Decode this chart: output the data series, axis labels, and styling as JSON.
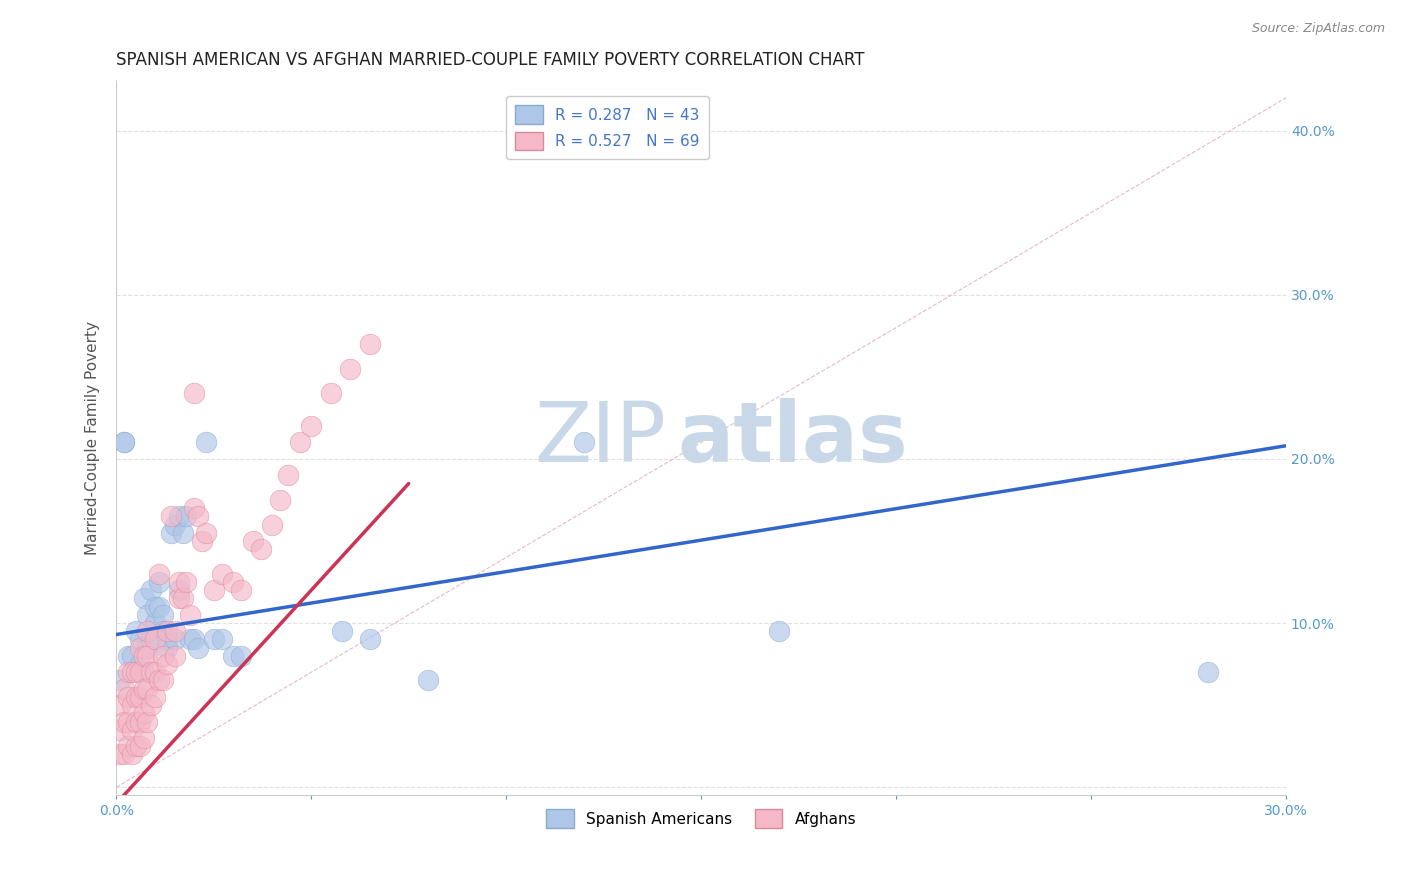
{
  "title": "SPANISH AMERICAN VS AFGHAN MARRIED-COUPLE FAMILY POVERTY CORRELATION CHART",
  "source": "Source: ZipAtlas.com",
  "ylabel": "Married-Couple Family Poverty",
  "xlim": [
    0.0,
    0.3
  ],
  "ylim": [
    -0.005,
    0.43
  ],
  "xticks": [
    0.0,
    0.05,
    0.1,
    0.15,
    0.2,
    0.25,
    0.3
  ],
  "xtick_labels": [
    "0.0%",
    "",
    "",
    "",
    "",
    "",
    "30.0%"
  ],
  "yticks": [
    0.0,
    0.1,
    0.2,
    0.3,
    0.4
  ],
  "ytick_labels": [
    "",
    "10.0%",
    "20.0%",
    "30.0%",
    "40.0%"
  ],
  "watermark_zip": "ZIP",
  "watermark_atlas": "atlas",
  "legend_entries": [
    {
      "label": "R = 0.287   N = 43",
      "color": "#aec6e8"
    },
    {
      "label": "R = 0.527   N = 69",
      "color": "#f4b8c8"
    }
  ],
  "legend_r_colors": [
    "#4477cc",
    "#4477cc"
  ],
  "spanish_americans": {
    "color": "#aec6e8",
    "edge_color": "#88aacc",
    "x": [
      0.001,
      0.002,
      0.003,
      0.004,
      0.005,
      0.006,
      0.006,
      0.007,
      0.007,
      0.008,
      0.008,
      0.009,
      0.009,
      0.01,
      0.01,
      0.011,
      0.011,
      0.012,
      0.012,
      0.013,
      0.013,
      0.014,
      0.015,
      0.015,
      0.016,
      0.016,
      0.017,
      0.018,
      0.019,
      0.02,
      0.021,
      0.023,
      0.025,
      0.027,
      0.03,
      0.032,
      0.058,
      0.065,
      0.08,
      0.12,
      0.17,
      0.28,
      0.002
    ],
    "y": [
      0.065,
      0.21,
      0.08,
      0.08,
      0.095,
      0.075,
      0.09,
      0.07,
      0.115,
      0.085,
      0.105,
      0.09,
      0.12,
      0.1,
      0.11,
      0.125,
      0.11,
      0.105,
      0.095,
      0.085,
      0.09,
      0.155,
      0.09,
      0.16,
      0.165,
      0.12,
      0.155,
      0.165,
      0.09,
      0.09,
      0.085,
      0.21,
      0.09,
      0.09,
      0.08,
      0.08,
      0.095,
      0.09,
      0.065,
      0.21,
      0.095,
      0.07,
      0.21
    ]
  },
  "afghans": {
    "color": "#f4b8c8",
    "edge_color": "#dd8899",
    "x": [
      0.001,
      0.001,
      0.001,
      0.002,
      0.002,
      0.002,
      0.003,
      0.003,
      0.003,
      0.003,
      0.004,
      0.004,
      0.004,
      0.004,
      0.005,
      0.005,
      0.005,
      0.005,
      0.006,
      0.006,
      0.006,
      0.006,
      0.006,
      0.007,
      0.007,
      0.007,
      0.007,
      0.008,
      0.008,
      0.008,
      0.008,
      0.009,
      0.009,
      0.01,
      0.01,
      0.01,
      0.011,
      0.011,
      0.012,
      0.012,
      0.013,
      0.013,
      0.014,
      0.015,
      0.015,
      0.016,
      0.016,
      0.017,
      0.018,
      0.019,
      0.02,
      0.021,
      0.022,
      0.023,
      0.025,
      0.027,
      0.03,
      0.032,
      0.035,
      0.037,
      0.04,
      0.042,
      0.044,
      0.047,
      0.05,
      0.055,
      0.06,
      0.065,
      0.02
    ],
    "y": [
      0.02,
      0.035,
      0.05,
      0.02,
      0.04,
      0.06,
      0.025,
      0.04,
      0.055,
      0.07,
      0.02,
      0.035,
      0.05,
      0.07,
      0.025,
      0.04,
      0.055,
      0.07,
      0.025,
      0.04,
      0.055,
      0.07,
      0.085,
      0.03,
      0.045,
      0.06,
      0.08,
      0.04,
      0.06,
      0.08,
      0.095,
      0.05,
      0.07,
      0.055,
      0.07,
      0.09,
      0.065,
      0.13,
      0.065,
      0.08,
      0.075,
      0.095,
      0.165,
      0.08,
      0.095,
      0.115,
      0.125,
      0.115,
      0.125,
      0.105,
      0.17,
      0.165,
      0.15,
      0.155,
      0.12,
      0.13,
      0.125,
      0.12,
      0.15,
      0.145,
      0.16,
      0.175,
      0.19,
      0.21,
      0.22,
      0.24,
      0.255,
      0.27,
      0.24
    ]
  },
  "diagonal_line": {
    "x": [
      0.0,
      0.3
    ],
    "y": [
      0.0,
      0.42
    ],
    "color": "#ddaabb",
    "linestyle": "dashed",
    "linewidth": 0.8
  },
  "blue_regression": {
    "x": [
      0.0,
      0.3
    ],
    "y": [
      0.093,
      0.208
    ],
    "color": "#3366cc",
    "linewidth": 2.5
  },
  "pink_regression": {
    "x": [
      0.0,
      0.075
    ],
    "y": [
      -0.01,
      0.185
    ],
    "color": "#cc3355",
    "linewidth": 2.5
  },
  "background_color": "#ffffff",
  "grid_color": "#e0e0e0",
  "title_fontsize": 12,
  "axis_label_fontsize": 11,
  "tick_fontsize": 10,
  "tick_color": "#5599cc",
  "watermark_zip_color": "#c8d8e8",
  "watermark_atlas_color": "#c8d8e8",
  "watermark_fontsize_zip": 60,
  "watermark_fontsize_atlas": 60
}
